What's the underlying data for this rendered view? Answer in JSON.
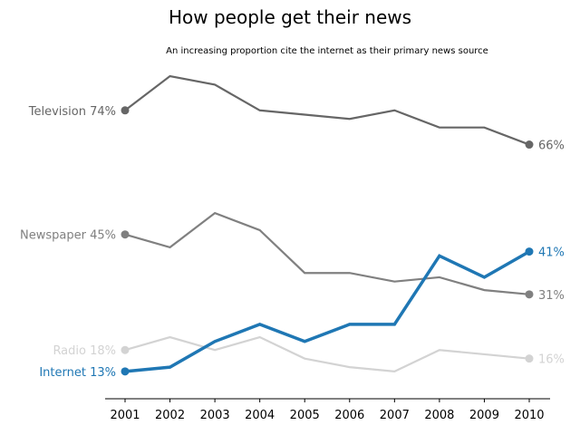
{
  "chart_data": {
    "type": "line",
    "title": "How people get their news",
    "subtitle": "An increasing proportion cite the internet as their primary news source",
    "xlabel": "",
    "ylabel": "",
    "x": [
      2001,
      2002,
      2003,
      2004,
      2005,
      2006,
      2007,
      2008,
      2009,
      2010
    ],
    "x_tick_labels": [
      "2001",
      "2002",
      "2003",
      "2004",
      "2005",
      "2006",
      "2007",
      "2008",
      "2009",
      "2010"
    ],
    "ylim": [
      10,
      82
    ],
    "grid": false,
    "legend": "none",
    "series": [
      {
        "name": "Television",
        "start_label": "Television 74%",
        "end_label": "66%",
        "color": "#666666",
        "values": [
          74,
          82,
          80,
          74,
          73,
          72,
          74,
          70,
          70,
          66
        ]
      },
      {
        "name": "Newspaper",
        "start_label": "Newspaper 45%",
        "end_label": "31%",
        "color": "#808080",
        "values": [
          45,
          42,
          50,
          46,
          36,
          36,
          34,
          35,
          32,
          31
        ]
      },
      {
        "name": "Radio",
        "start_label": "Radio 18%",
        "end_label": "16%",
        "color": "#d3d3d3",
        "values": [
          18,
          21,
          18,
          21,
          16,
          14,
          13,
          18,
          17,
          16
        ]
      },
      {
        "name": "Internet",
        "start_label": "Internet 13%",
        "end_label": "41%",
        "color": "#1f77b4",
        "highlight": true,
        "values": [
          13,
          14,
          20,
          24,
          20,
          24,
          24,
          40,
          35,
          41
        ]
      }
    ]
  }
}
